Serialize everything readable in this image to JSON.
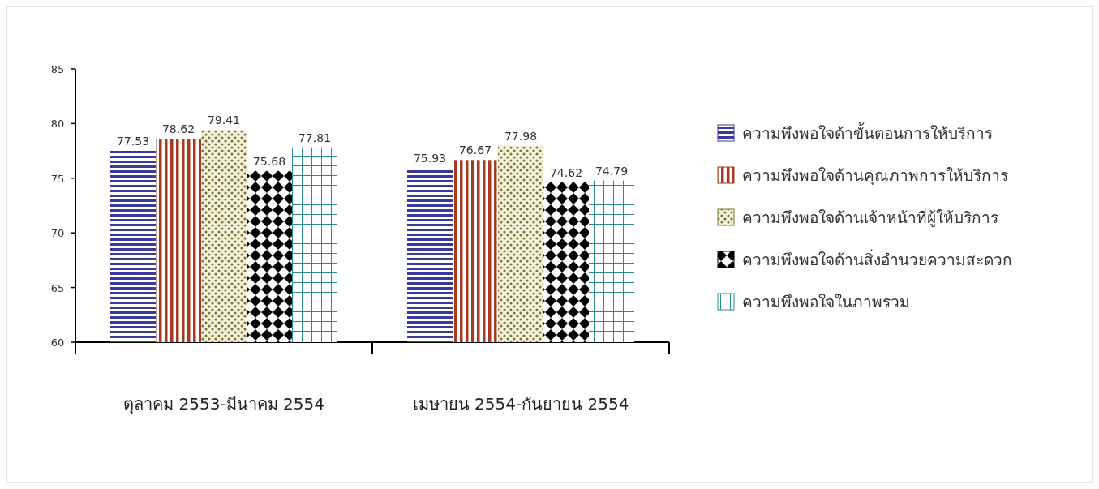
{
  "chart_data": {
    "type": "bar",
    "categories": [
      "ตุลาคม 2553-มีนาคม 2554",
      "เมษายน 2554-กันยายน 2554"
    ],
    "ylim": [
      60,
      85
    ],
    "yticks": [
      60,
      65,
      70,
      75,
      80,
      85
    ],
    "data_labels": true,
    "legend": "right",
    "grid": false,
    "series": [
      {
        "name": "ความพึงพอใจด้าขั้นตอนการให้บริการ",
        "color": "#3a3a9c",
        "values": [
          77.53,
          75.93
        ]
      },
      {
        "name": "ความพึงพอใจด้านคุณภาพการให้บริการ",
        "color": "#a83a22",
        "values": [
          78.62,
          76.67
        ]
      },
      {
        "name": "ความพึงพอใจด้านเจ้าหน้าที่ผู้ให้บริการ",
        "color": "#7a7838",
        "values": [
          79.41,
          77.98
        ]
      },
      {
        "name": "ความพึงพอใจด้านสิ่งอำนวยความสะดวก",
        "color": "#000000",
        "values": [
          75.68,
          74.62
        ]
      },
      {
        "name": "ความพึงพอใจในภาพรวม",
        "color": "#2a8c8c",
        "values": [
          77.81,
          74.79
        ]
      }
    ]
  }
}
